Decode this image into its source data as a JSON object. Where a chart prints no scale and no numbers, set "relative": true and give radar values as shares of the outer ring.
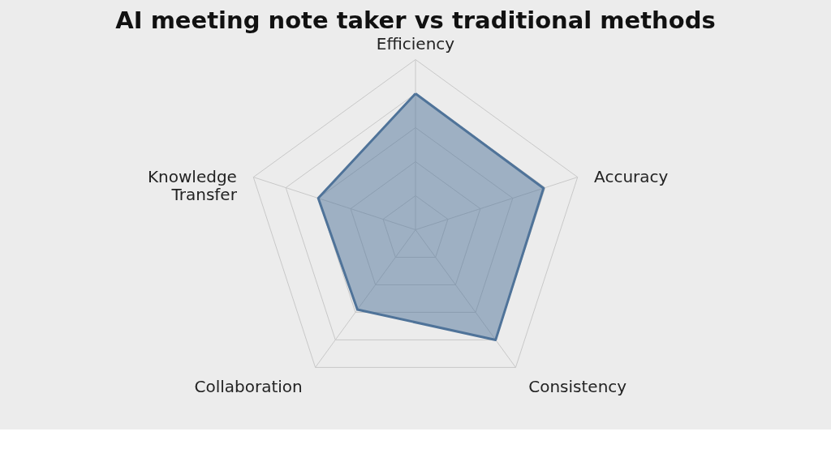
{
  "chart_data": {
    "type": "radar",
    "title": "AI meeting note taker vs traditional methods",
    "categories": [
      "Efficiency",
      "Accuracy",
      "Consistency",
      "Collaboration",
      "Knowledge\nTransfer"
    ],
    "relative": true,
    "grid": true,
    "series": [
      {
        "color": "#4f7399",
        "values": [
          0.8,
          0.79,
          0.8,
          0.58,
          0.6
        ]
      }
    ]
  }
}
